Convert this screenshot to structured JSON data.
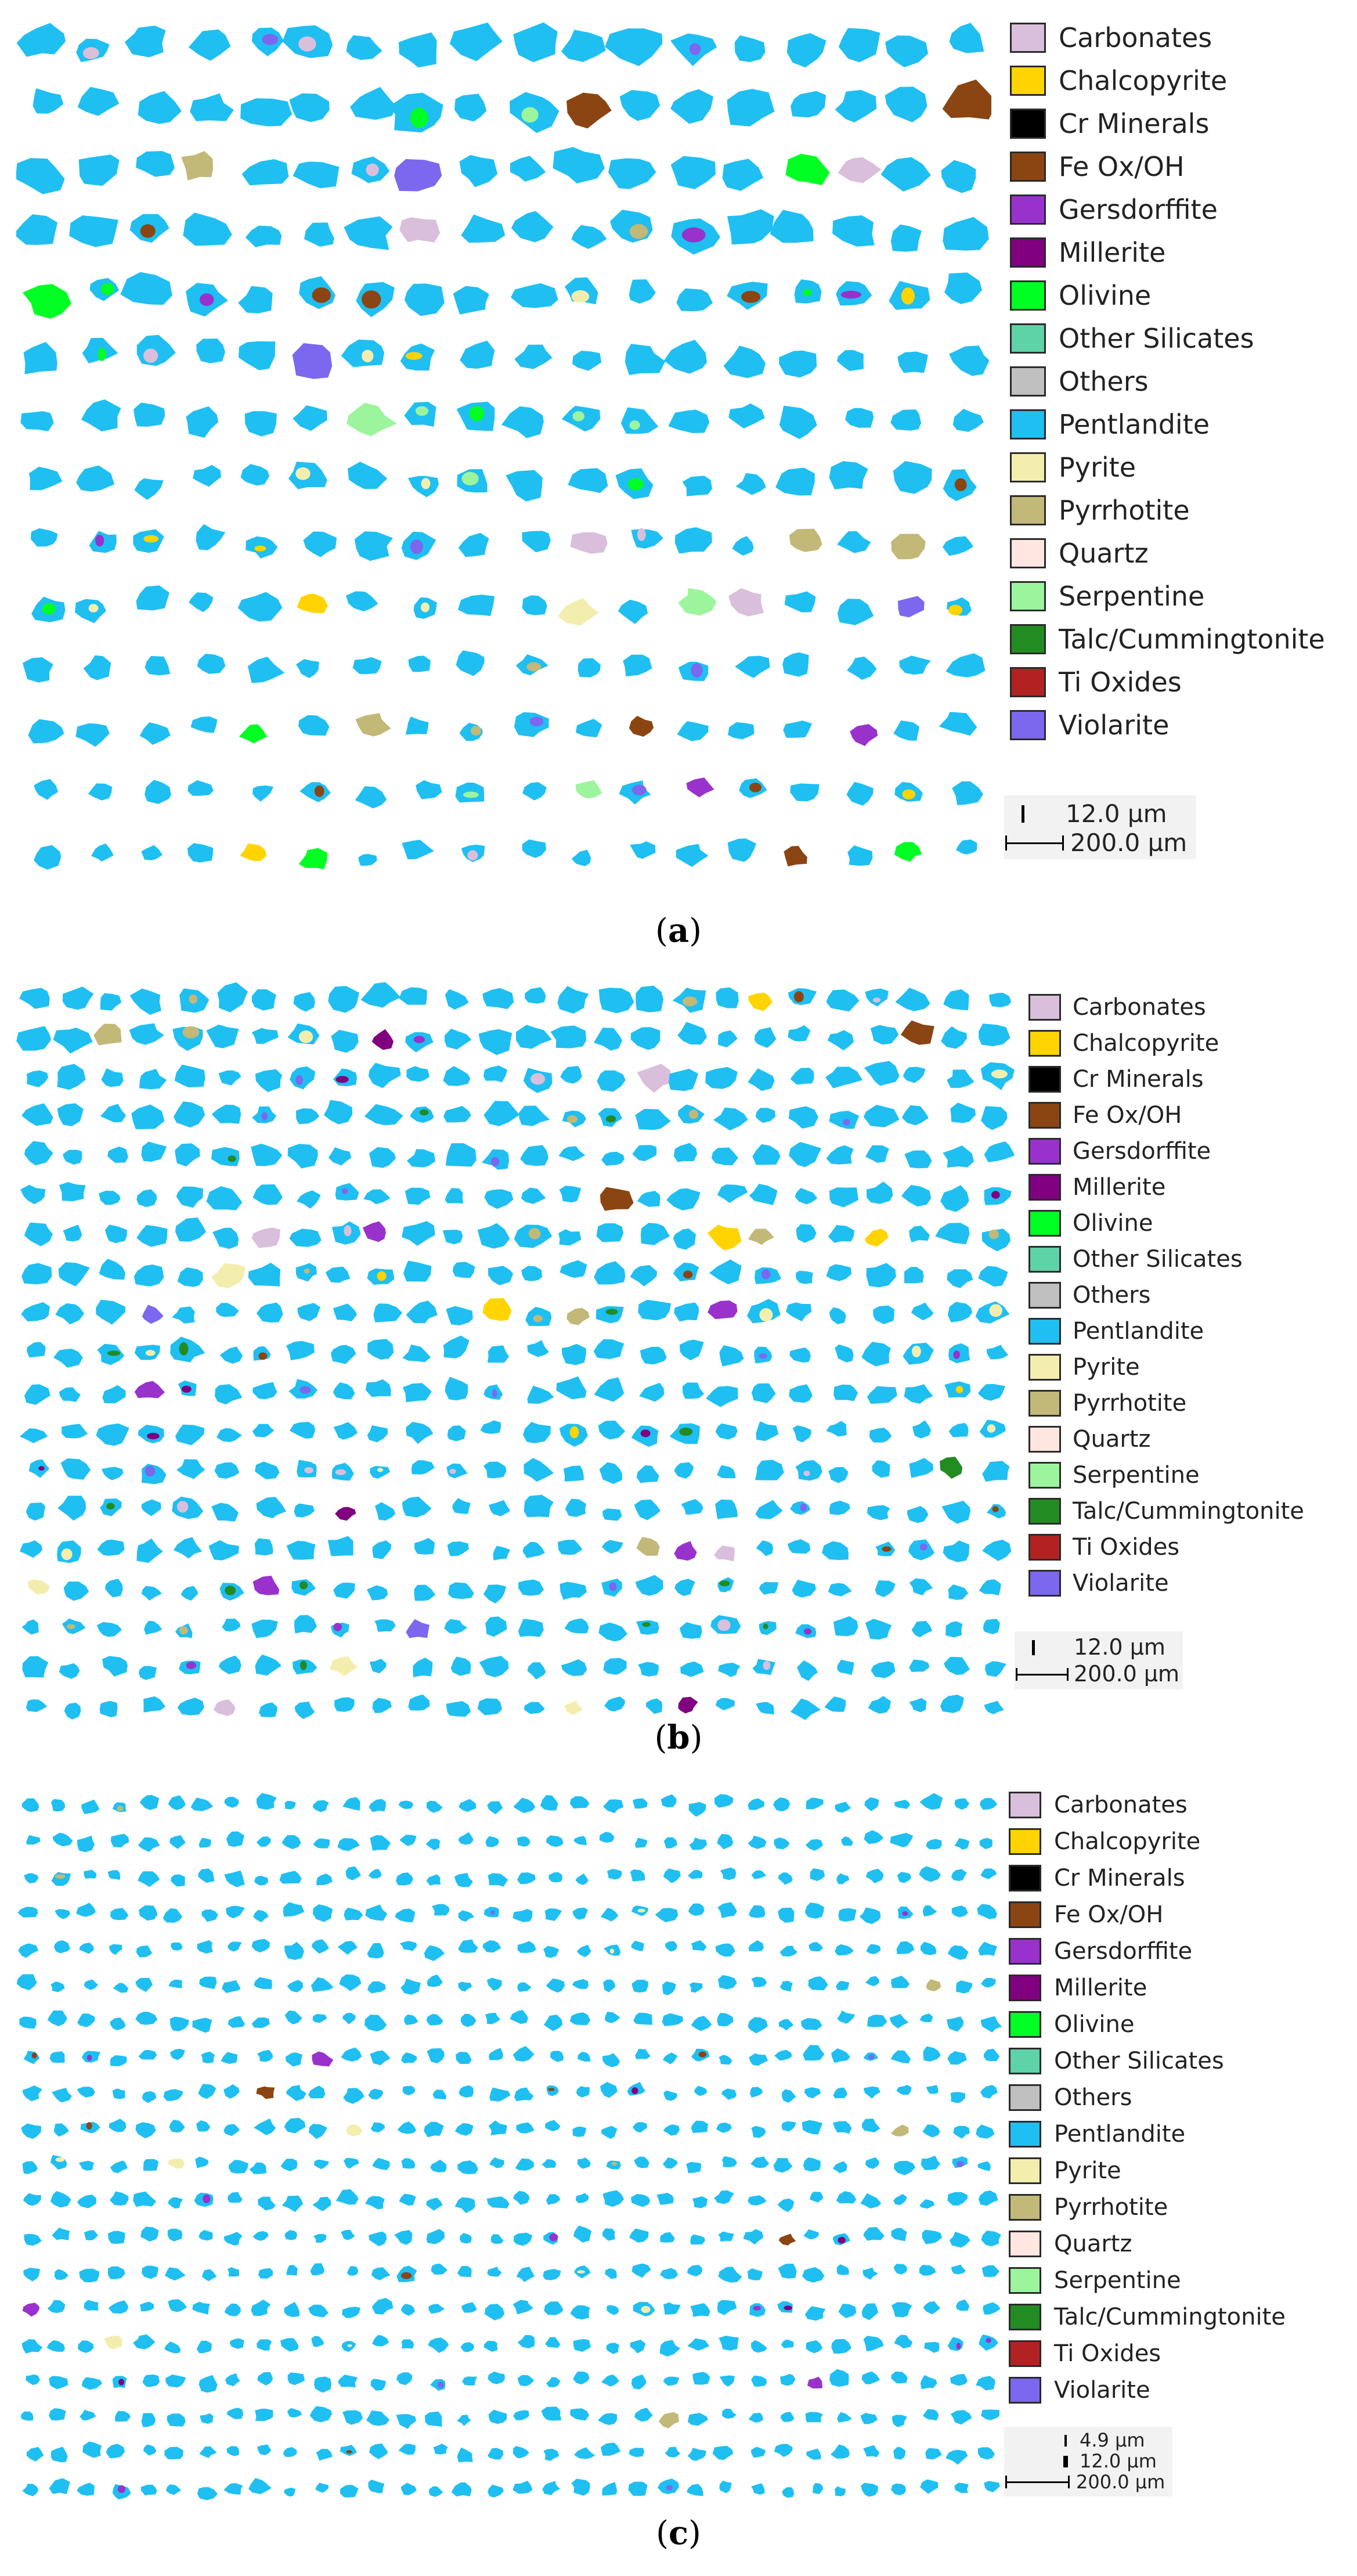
{
  "colors": {
    "Carbonates": "#d9bfdb",
    "Chalcopyrite": "#ffd400",
    "Cr Minerals": "#000000",
    "Fe Ox/OH": "#8b4513",
    "Gersdorffite": "#9932cc",
    "Millerite": "#800080",
    "Olivine": "#00ff22",
    "Other Silicates": "#5fd3a8",
    "Others": "#c0c0c0",
    "Pentlandite": "#1fbff2",
    "Pyrite": "#f3eeae",
    "Pyrrhotite": "#c2b878",
    "Quartz": "#ffe6e0",
    "Serpentine": "#9cf59c",
    "Talc/Cummingtonite": "#228b22",
    "Ti Oxides": "#b22222",
    "Violarite": "#7b68ee"
  },
  "legend_labels": [
    "Carbonates",
    "Chalcopyrite",
    "Cr Minerals",
    "Fe Ox/OH",
    "Gersdorffite",
    "Millerite",
    "Olivine",
    "Other Silicates",
    "Others",
    "Pentlandite",
    "Pyrite",
    "Pyrrhotite",
    "Quartz",
    "Serpentine",
    "Talc/Cummingtonite",
    "Ti Oxides",
    "Violarite"
  ],
  "panels": [
    {
      "id": "a",
      "caption_open": "(",
      "caption_letter": "a",
      "caption_close": ")",
      "scale_labels": [
        "12.0 µm",
        "200.0 µm"
      ],
      "particles": {
        "rows": 14,
        "cols": 18,
        "size_large": 1.0,
        "size_small": 0.55,
        "accent_fraction": 0.32,
        "accent_minerals": [
          "Pyrrhotite",
          "Chalcopyrite",
          "Violarite",
          "Fe Ox/OH",
          "Pyrite",
          "Serpentine",
          "Carbonates",
          "Gersdorffite",
          "Olivine"
        ]
      }
    },
    {
      "id": "b",
      "caption_open": "(",
      "caption_letter": "b",
      "caption_close": ")",
      "scale_labels": [
        "12.0 µm",
        "200.0 µm"
      ],
      "particles": {
        "rows": 19,
        "cols": 26,
        "size_large": 0.9,
        "size_small": 0.7,
        "accent_fraction": 0.22,
        "accent_minerals": [
          "Pyrrhotite",
          "Violarite",
          "Chalcopyrite",
          "Pyrite",
          "Fe Ox/OH",
          "Carbonates",
          "Gersdorffite",
          "Talc/Cummingtonite",
          "Millerite"
        ]
      }
    },
    {
      "id": "c",
      "caption_open": "(",
      "caption_letter": "c",
      "caption_close": ")",
      "scale_labels": [
        "4.9 µm",
        "12.0 µm",
        "200.0 µm"
      ],
      "particles": {
        "rows": 20,
        "cols": 34,
        "size_large": 0.7,
        "size_small": 0.7,
        "accent_fraction": 0.07,
        "accent_minerals": [
          "Violarite",
          "Pyrrhotite",
          "Millerite",
          "Gersdorffite",
          "Fe Ox/OH",
          "Pyrite"
        ]
      }
    }
  ]
}
